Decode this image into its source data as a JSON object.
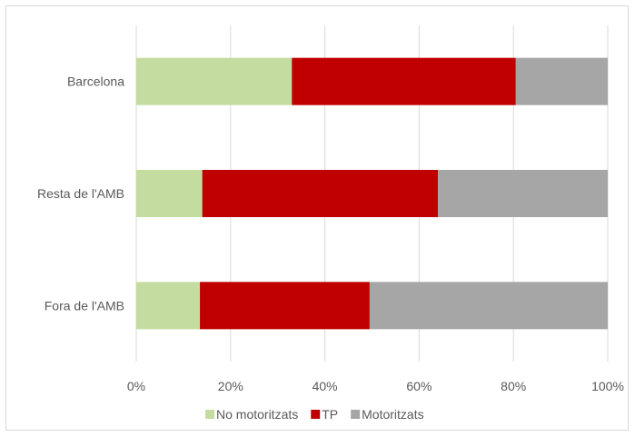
{
  "chart_data": {
    "type": "bar",
    "orientation": "horizontal",
    "stacked": "percent",
    "categories": [
      "Barcelona",
      "Resta de l'AMB",
      "Fora de l'AMB"
    ],
    "series": [
      {
        "name": "No motoritzats",
        "color": "#c5dca0",
        "values": [
          33,
          14,
          13.5
        ]
      },
      {
        "name": "TP",
        "color": "#c00000",
        "values": [
          47.5,
          50,
          36
        ]
      },
      {
        "name": "Motoritzats",
        "color": "#a6a6a6",
        "values": [
          19.5,
          36,
          50.5
        ]
      }
    ],
    "xlim": [
      0,
      100
    ],
    "xticks": [
      "0%",
      "20%",
      "40%",
      "60%",
      "80%",
      "100%"
    ],
    "grid": "vertical",
    "legend_position": "bottom"
  }
}
